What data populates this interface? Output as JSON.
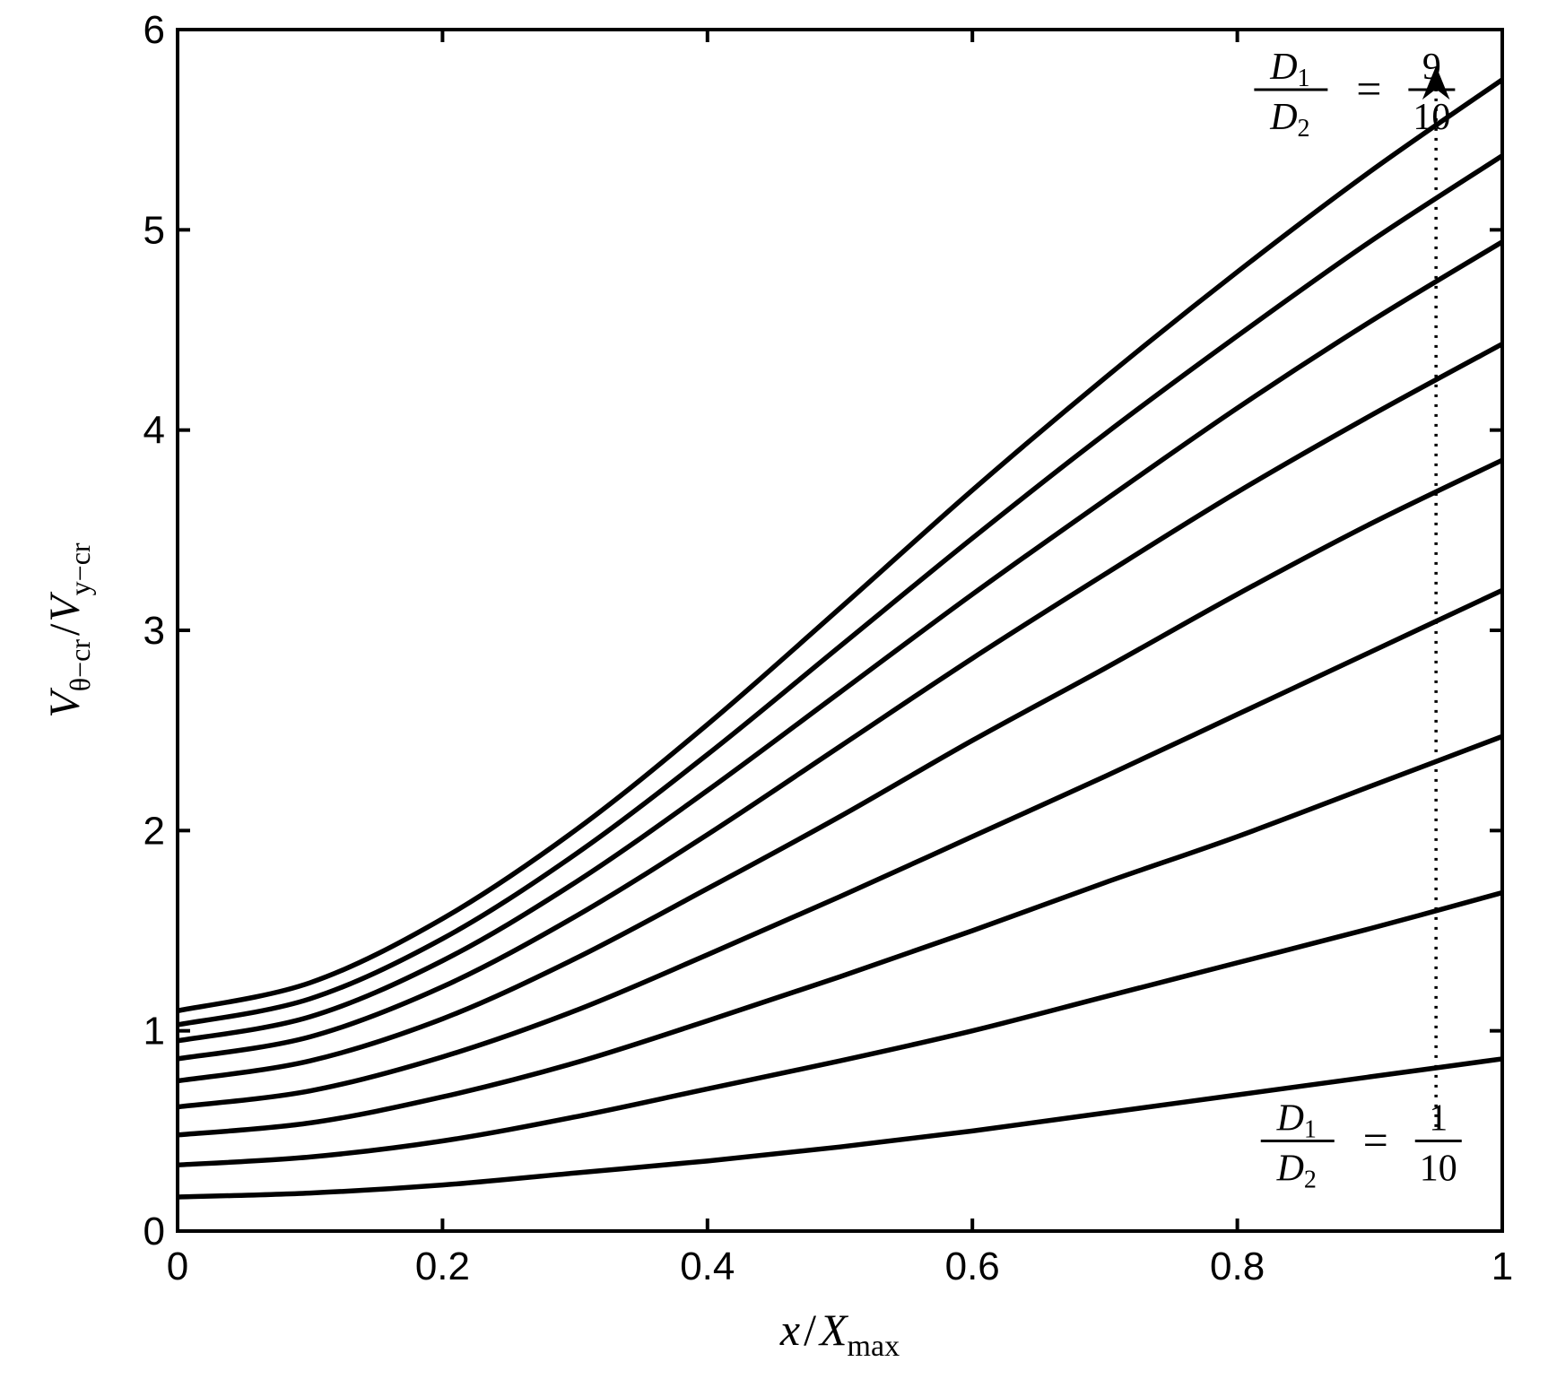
{
  "chart_data": {
    "type": "line",
    "title": "",
    "xlabel": {
      "var": "x",
      "sep": "/",
      "main": "X",
      "sub": "max"
    },
    "ylabel": {
      "num": "V",
      "num_sub": "θ−cr",
      "sep": "/",
      "den": "V",
      "den_sub": "y−cr"
    },
    "xlim": [
      0,
      1
    ],
    "ylim": [
      0,
      6
    ],
    "xticks": [
      0,
      0.2,
      0.4,
      0.6,
      0.8,
      1
    ],
    "xtick_labels": [
      "0",
      "0.2",
      "0.4",
      "0.6",
      "0.8",
      "1"
    ],
    "yticks": [
      0,
      1,
      2,
      3,
      4,
      5,
      6
    ],
    "ytick_labels": [
      "0",
      "1",
      "2",
      "3",
      "4",
      "5",
      "6"
    ],
    "grid": false,
    "x": [
      0,
      0.1,
      0.2,
      0.3,
      0.4,
      0.5,
      0.6,
      0.7,
      0.8,
      0.9,
      1.0
    ],
    "series": [
      {
        "values": [
          0.17,
          0.19,
          0.23,
          0.29,
          0.35,
          0.42,
          0.5,
          0.59,
          0.68,
          0.77,
          0.86
        ]
      },
      {
        "values": [
          0.33,
          0.37,
          0.45,
          0.57,
          0.71,
          0.85,
          1.0,
          1.17,
          1.34,
          1.51,
          1.69
        ]
      },
      {
        "values": [
          0.48,
          0.54,
          0.67,
          0.84,
          1.05,
          1.27,
          1.5,
          1.74,
          1.97,
          2.22,
          2.47
        ]
      },
      {
        "values": [
          0.62,
          0.7,
          0.87,
          1.1,
          1.38,
          1.67,
          1.97,
          2.27,
          2.58,
          2.89,
          3.2
        ]
      },
      {
        "values": [
          0.75,
          0.85,
          1.06,
          1.36,
          1.71,
          2.07,
          2.45,
          2.81,
          3.18,
          3.53,
          3.85
        ]
      },
      {
        "values": [
          0.86,
          0.97,
          1.22,
          1.57,
          1.98,
          2.42,
          2.86,
          3.28,
          3.69,
          4.07,
          4.43
        ]
      },
      {
        "values": [
          0.95,
          1.07,
          1.35,
          1.74,
          2.2,
          2.69,
          3.18,
          3.65,
          4.11,
          4.54,
          4.94
        ]
      },
      {
        "values": [
          1.03,
          1.16,
          1.46,
          1.88,
          2.38,
          2.92,
          3.46,
          3.98,
          4.47,
          4.94,
          5.37
        ]
      },
      {
        "values": [
          1.1,
          1.24,
          1.56,
          2.0,
          2.53,
          3.11,
          3.7,
          4.26,
          4.79,
          5.29,
          5.75
        ]
      }
    ],
    "dotted_line": {
      "x": 0.95,
      "y_from": 0.52,
      "y_to": 5.78
    },
    "arrow": {
      "x": 0.95,
      "y": 5.78
    },
    "annotations": [
      {
        "id": "top",
        "num_main": "D",
        "num_sub": "1",
        "den_main": "D",
        "den_sub": "2",
        "eq": "=",
        "frac_num": "9",
        "frac_den": "10",
        "x": 0.81,
        "y": 5.7
      },
      {
        "id": "bottom",
        "num_main": "D",
        "num_sub": "1",
        "den_main": "D",
        "den_sub": "2",
        "eq": "=",
        "frac_num": "1",
        "frac_den": "10",
        "x": 0.815,
        "y": 0.45
      }
    ]
  }
}
